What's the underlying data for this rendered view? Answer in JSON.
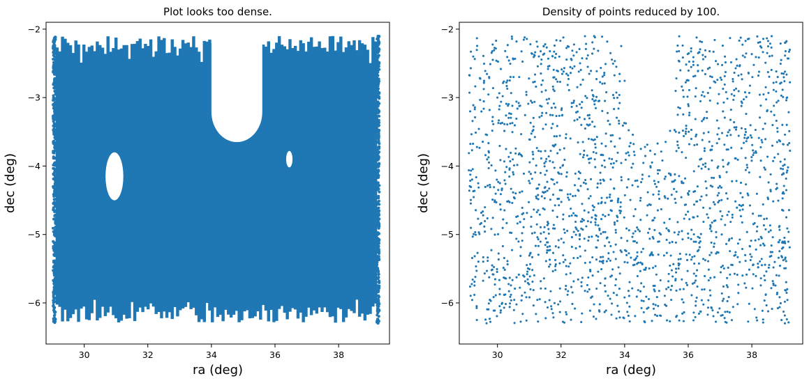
{
  "chart_data": [
    {
      "type": "scatter",
      "title": "Plot looks too dense.",
      "xlabel": "ra (deg)",
      "ylabel": "dec (deg)",
      "xlim": [
        28.8,
        39.6
      ],
      "ylim": [
        -6.6,
        -1.9
      ],
      "xticks": [
        30,
        32,
        34,
        36,
        38
      ],
      "yticks": [
        -2,
        -3,
        -4,
        -5,
        -6
      ],
      "xtick_labels": [
        "30",
        "32",
        "34",
        "36",
        "38"
      ],
      "ytick_labels": [
        "−2",
        "−3",
        "−4",
        "−5",
        "−6"
      ],
      "color": "#1f77b4",
      "marker_size": 4,
      "density": "dense",
      "footprint": {
        "ra_range": [
          29.1,
          39.2
        ],
        "dec_range": [
          -6.3,
          -2.1
        ],
        "holes": [
          {
            "kind": "u-cutout",
            "ra_center": 34.8,
            "ra_halfwidth": 0.8,
            "dec_top": -2.4,
            "dec_bottom": -3.65
          },
          {
            "kind": "ellipse",
            "ra_center": 30.95,
            "dec_center": -4.15,
            "ra_radius": 0.28,
            "dec_radius": 0.35
          },
          {
            "kind": "ellipse",
            "ra_center": 36.45,
            "dec_center": -3.9,
            "ra_radius": 0.1,
            "dec_radius": 0.12
          }
        ]
      }
    },
    {
      "type": "scatter",
      "title": "Density of points reduced by 100.",
      "xlabel": "ra (deg)",
      "ylabel": "dec (deg)",
      "xlim": [
        28.8,
        39.6
      ],
      "ylim": [
        -6.6,
        -1.9
      ],
      "xticks": [
        30,
        32,
        34,
        36,
        38
      ],
      "yticks": [
        -2,
        -3,
        -4,
        -5,
        -6
      ],
      "xtick_labels": [
        "30",
        "32",
        "34",
        "36",
        "38"
      ],
      "ytick_labels": [
        "−2",
        "−3",
        "−4",
        "−5",
        "−6"
      ],
      "color": "#1f77b4",
      "marker_size": 2.5,
      "density": "sparse",
      "approx_point_count": 2000,
      "footprint": {
        "ra_range": [
          29.1,
          39.2
        ],
        "dec_range": [
          -6.3,
          -2.1
        ],
        "holes": [
          {
            "kind": "u-cutout",
            "ra_center": 34.8,
            "ra_halfwidth": 0.8,
            "dec_top": -2.4,
            "dec_bottom": -3.65
          }
        ]
      }
    }
  ]
}
